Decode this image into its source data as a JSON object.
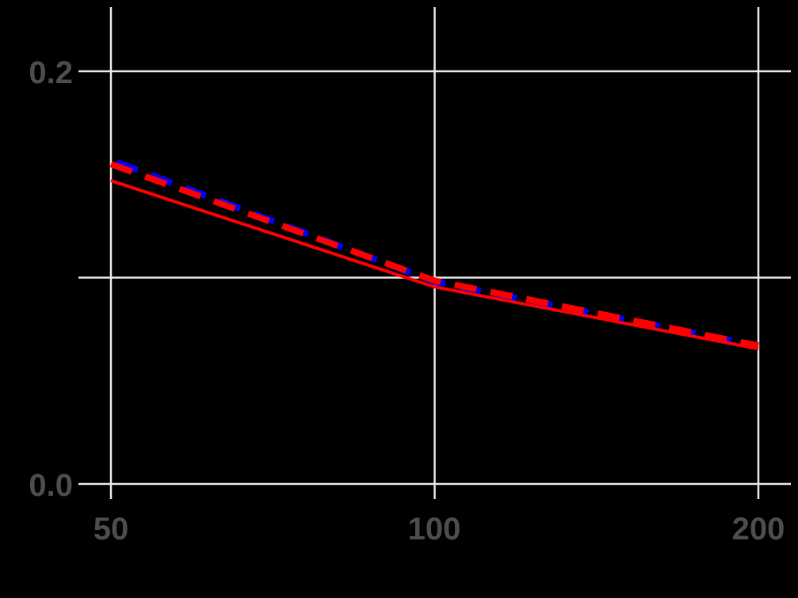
{
  "chart_data": {
    "type": "line",
    "title": "",
    "xlabel": "",
    "ylabel": "",
    "x_scale": "log",
    "x": [
      50,
      100,
      200
    ],
    "x_ticks": [
      "50",
      "100",
      "200"
    ],
    "y_ticks": [
      "0.0",
      "0.2"
    ],
    "y_minor_gridline": 0.1,
    "ylim": [
      -0.01,
      0.231
    ],
    "grid": true,
    "legend": null,
    "background": "#000000",
    "gridline_color": "#ebebeb",
    "series": [
      {
        "name": "series-blue-dashed",
        "color": "#0000ff",
        "linestyle": "dashed",
        "values": [
          0.157,
          0.098,
          0.067
        ]
      },
      {
        "name": "series-red-dashed",
        "color": "#ff0000",
        "linestyle": "dashed",
        "values": [
          0.155,
          0.0985,
          0.067
        ]
      },
      {
        "name": "series-red-solid",
        "color": "#ff0000",
        "linestyle": "solid",
        "values": [
          0.147,
          0.0955,
          0.0655
        ]
      }
    ]
  }
}
